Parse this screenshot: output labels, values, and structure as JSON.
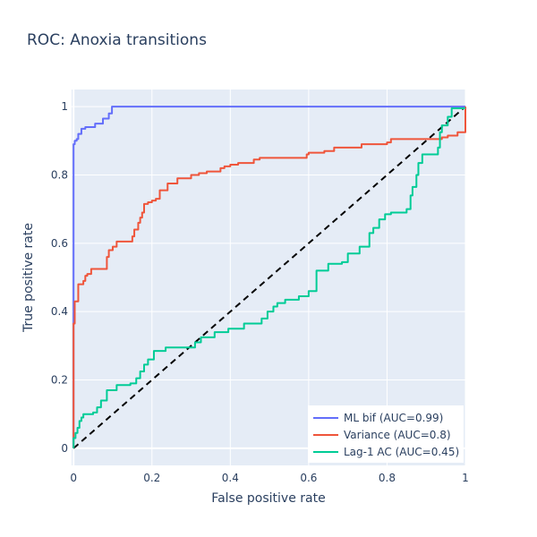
{
  "chart_data": {
    "type": "line",
    "title": "ROC: Anoxia transitions",
    "xlabel": "False positive rate",
    "ylabel": "True positive rate",
    "xlim": [
      -0.005,
      1.0
    ],
    "ylim": [
      -0.05,
      1.05
    ],
    "x_ticks": [
      0,
      0.2,
      0.4,
      0.6,
      0.8,
      1
    ],
    "x_tick_labels": [
      "0",
      "0.2",
      "0.4",
      "0.6",
      "0.8",
      "1"
    ],
    "y_ticks": [
      0,
      0.2,
      0.4,
      0.6,
      0.8,
      1
    ],
    "y_tick_labels": [
      "0",
      "0.2",
      "0.4",
      "0.6",
      "0.8",
      "1"
    ],
    "grid": true,
    "legend_position": "bottom-right",
    "background_color": "#e5ecf6",
    "series": [
      {
        "name": "ML bif (AUC=0.99)",
        "color": "#636efa",
        "x": [
          0,
          0,
          0.003,
          0.003,
          0.008,
          0.008,
          0.012,
          0.012,
          0.02,
          0.02,
          0.03,
          0.03,
          0.055,
          0.055,
          0.075,
          0.075,
          0.09,
          0.09,
          0.098,
          0.098,
          1.0
        ],
        "y": [
          0,
          0.89,
          0.89,
          0.9,
          0.9,
          0.905,
          0.905,
          0.92,
          0.92,
          0.935,
          0.935,
          0.94,
          0.94,
          0.95,
          0.95,
          0.965,
          0.965,
          0.98,
          0.98,
          1.0,
          1.0
        ]
      },
      {
        "name": "Variance (AUC=0.8)",
        "color": "#ef553b",
        "x": [
          0,
          0,
          0.003,
          0.003,
          0.012,
          0.012,
          0.025,
          0.025,
          0.03,
          0.03,
          0.035,
          0.035,
          0.045,
          0.045,
          0.055,
          0.055,
          0.085,
          0.085,
          0.09,
          0.09,
          0.1,
          0.1,
          0.11,
          0.11,
          0.15,
          0.15,
          0.155,
          0.155,
          0.165,
          0.165,
          0.17,
          0.17,
          0.175,
          0.175,
          0.18,
          0.18,
          0.19,
          0.19,
          0.2,
          0.2,
          0.21,
          0.21,
          0.22,
          0.22,
          0.24,
          0.24,
          0.265,
          0.265,
          0.3,
          0.3,
          0.32,
          0.32,
          0.34,
          0.34,
          0.375,
          0.375,
          0.385,
          0.385,
          0.4,
          0.4,
          0.42,
          0.42,
          0.46,
          0.46,
          0.475,
          0.475,
          0.595,
          0.595,
          0.6,
          0.6,
          0.64,
          0.64,
          0.665,
          0.665,
          0.735,
          0.735,
          0.8,
          0.8,
          0.81,
          0.81,
          0.9,
          0.9,
          0.94,
          0.94,
          0.955,
          0.955,
          0.98,
          0.98,
          1.0,
          1.0
        ],
        "y": [
          0,
          0.365,
          0.365,
          0.43,
          0.43,
          0.48,
          0.48,
          0.49,
          0.49,
          0.505,
          0.505,
          0.51,
          0.51,
          0.525,
          0.525,
          0.525,
          0.525,
          0.56,
          0.56,
          0.58,
          0.58,
          0.59,
          0.59,
          0.605,
          0.605,
          0.62,
          0.62,
          0.64,
          0.64,
          0.66,
          0.66,
          0.675,
          0.675,
          0.69,
          0.69,
          0.715,
          0.715,
          0.72,
          0.72,
          0.725,
          0.725,
          0.73,
          0.73,
          0.755,
          0.755,
          0.775,
          0.775,
          0.79,
          0.79,
          0.8,
          0.8,
          0.805,
          0.805,
          0.81,
          0.81,
          0.82,
          0.82,
          0.825,
          0.825,
          0.83,
          0.83,
          0.835,
          0.835,
          0.845,
          0.845,
          0.85,
          0.85,
          0.86,
          0.86,
          0.865,
          0.865,
          0.87,
          0.87,
          0.88,
          0.88,
          0.89,
          0.89,
          0.895,
          0.895,
          0.905,
          0.905,
          0.905,
          0.905,
          0.91,
          0.91,
          0.915,
          0.915,
          0.925,
          0.925,
          1.0
        ]
      },
      {
        "name": "Lag-1 AC (AUC=0.45)",
        "color": "#00cc96",
        "x": [
          0,
          0,
          0.005,
          0.005,
          0.01,
          0.01,
          0.015,
          0.015,
          0.02,
          0.02,
          0.025,
          0.025,
          0.05,
          0.05,
          0.06,
          0.06,
          0.07,
          0.07,
          0.085,
          0.085,
          0.11,
          0.11,
          0.145,
          0.145,
          0.16,
          0.16,
          0.17,
          0.17,
          0.18,
          0.18,
          0.19,
          0.19,
          0.205,
          0.205,
          0.235,
          0.235,
          0.31,
          0.31,
          0.325,
          0.325,
          0.36,
          0.36,
          0.395,
          0.395,
          0.435,
          0.435,
          0.48,
          0.48,
          0.495,
          0.495,
          0.51,
          0.51,
          0.52,
          0.52,
          0.54,
          0.54,
          0.575,
          0.575,
          0.6,
          0.6,
          0.62,
          0.62,
          0.65,
          0.65,
          0.685,
          0.685,
          0.7,
          0.7,
          0.73,
          0.73,
          0.755,
          0.755,
          0.765,
          0.765,
          0.78,
          0.78,
          0.795,
          0.795,
          0.81,
          0.81,
          0.85,
          0.85,
          0.86,
          0.86,
          0.865,
          0.865,
          0.875,
          0.875,
          0.88,
          0.88,
          0.89,
          0.89,
          0.93,
          0.93,
          0.935,
          0.935,
          0.94,
          0.94,
          0.955,
          0.955,
          0.965,
          0.965,
          1.0
        ],
        "y": [
          0,
          0.03,
          0.03,
          0.045,
          0.045,
          0.06,
          0.06,
          0.08,
          0.08,
          0.09,
          0.09,
          0.1,
          0.1,
          0.105,
          0.105,
          0.12,
          0.12,
          0.14,
          0.14,
          0.17,
          0.17,
          0.185,
          0.185,
          0.19,
          0.19,
          0.205,
          0.205,
          0.225,
          0.225,
          0.245,
          0.245,
          0.26,
          0.26,
          0.285,
          0.285,
          0.295,
          0.295,
          0.31,
          0.31,
          0.325,
          0.325,
          0.34,
          0.34,
          0.35,
          0.35,
          0.365,
          0.365,
          0.38,
          0.38,
          0.4,
          0.4,
          0.415,
          0.415,
          0.425,
          0.425,
          0.435,
          0.435,
          0.445,
          0.445,
          0.46,
          0.46,
          0.52,
          0.52,
          0.54,
          0.54,
          0.545,
          0.545,
          0.57,
          0.57,
          0.59,
          0.59,
          0.63,
          0.63,
          0.645,
          0.645,
          0.67,
          0.67,
          0.685,
          0.685,
          0.69,
          0.69,
          0.7,
          0.7,
          0.74,
          0.74,
          0.765,
          0.765,
          0.8,
          0.8,
          0.835,
          0.835,
          0.86,
          0.86,
          0.88,
          0.88,
          0.925,
          0.925,
          0.945,
          0.945,
          0.97,
          0.97,
          0.995,
          0.995
        ]
      }
    ],
    "reference_line": {
      "x": [
        0,
        1
      ],
      "y": [
        0,
        1
      ],
      "color": "#000000"
    }
  }
}
